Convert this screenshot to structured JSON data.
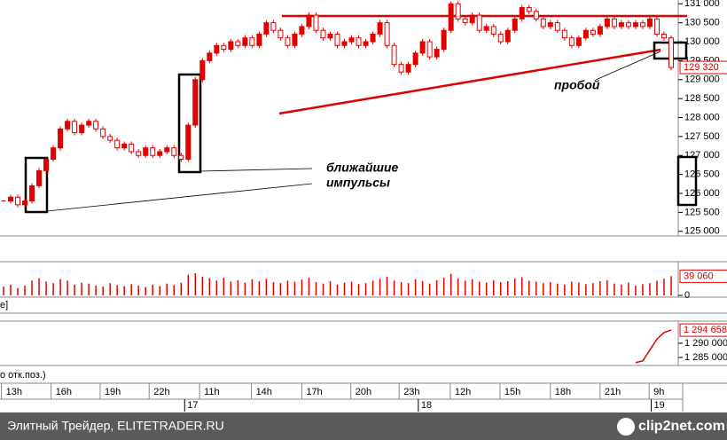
{
  "chart_data": [
    {
      "type": "candlestick",
      "color": "#e00000",
      "values": [
        125800,
        125900,
        125700,
        125800,
        126200,
        126600,
        126900,
        127200,
        127700,
        127900,
        127600,
        127800,
        127900,
        127700,
        127500,
        127400,
        127200,
        127300,
        127100,
        127000,
        127200,
        127000,
        127100,
        127200,
        127000,
        126900,
        127800,
        129000,
        129500,
        129700,
        129900,
        129800,
        130000,
        129900,
        130100,
        129900,
        130200,
        130500,
        130300,
        130100,
        129900,
        130200,
        130400,
        130700,
        130300,
        130100,
        130200,
        129900,
        130000,
        130100,
        129900,
        130000,
        130200,
        130500,
        129900,
        129400,
        129200,
        129400,
        129700,
        130000,
        129600,
        129800,
        130300,
        131000,
        130600,
        130500,
        130700,
        130300,
        130400,
        130200,
        130000,
        130300,
        130600,
        130900,
        130800,
        130600,
        130400,
        130500,
        130300,
        130100,
        129900,
        130100,
        130300,
        130200,
        130400,
        130600,
        130400,
        130500,
        130400,
        130500,
        130400,
        130600,
        130200,
        130100,
        129320
      ],
      "last": {
        "value": 129320,
        "label": "129 320"
      },
      "ylim": [
        124900,
        131100
      ],
      "yticks": [
        {
          "value": 131000,
          "label": "131 000"
        },
        {
          "value": 130500,
          "label": "130 500"
        },
        {
          "value": 130000,
          "label": "130 000"
        },
        {
          "value": 129500,
          "label": "129 500"
        },
        {
          "value": 129000,
          "label": "129 000"
        },
        {
          "value": 128500,
          "label": "128 500"
        },
        {
          "value": 128000,
          "label": "128 000"
        },
        {
          "value": 127500,
          "label": "127 500"
        },
        {
          "value": 127000,
          "label": "127 000"
        },
        {
          "value": 126500,
          "label": "126 500"
        },
        {
          "value": 126000,
          "label": "126 000"
        },
        {
          "value": 125500,
          "label": "125 500"
        },
        {
          "value": 125000,
          "label": "125 000"
        }
      ],
      "xlim": [
        -0.5,
        95
      ],
      "xticks": [
        {
          "value": -0.3,
          "label": "13h"
        },
        {
          "value": 6.7,
          "label": "16h"
        },
        {
          "value": 13.6,
          "label": "19h"
        },
        {
          "value": 20.5,
          "label": "22h"
        },
        {
          "value": 27.6,
          "label": "11h"
        },
        {
          "value": 34.9,
          "label": "14h"
        },
        {
          "value": 42,
          "label": "17h"
        },
        {
          "value": 48.9,
          "label": "20h"
        },
        {
          "value": 55.7,
          "label": "23h"
        },
        {
          "value": 62.9,
          "label": "12h"
        },
        {
          "value": 69.9,
          "label": "15h"
        },
        {
          "value": 77,
          "label": "18h"
        },
        {
          "value": 84,
          "label": "21h"
        },
        {
          "value": 90.9,
          "label": "9h"
        }
      ],
      "date_ticks": [
        {
          "value": 25.5,
          "label": "17"
        },
        {
          "value": 58.4,
          "label": "18"
        },
        {
          "value": 91.2,
          "label": "19"
        }
      ],
      "annotations": [
        "ближайшие",
        "импульсы",
        "пробой"
      ]
    },
    {
      "type": "bar",
      "color": "#e00000",
      "values": [
        18000,
        22000,
        15000,
        20000,
        30000,
        35000,
        28000,
        25000,
        33000,
        30000,
        22000,
        26000,
        24000,
        20000,
        18000,
        25000,
        21000,
        19000,
        23000,
        20000,
        17000,
        22000,
        19000,
        24000,
        21000,
        26000,
        42000,
        45000,
        38000,
        35000,
        30000,
        36000,
        28000,
        31000,
        26000,
        33000,
        29000,
        34000,
        27000,
        25000,
        30000,
        28000,
        32000,
        36000,
        27000,
        24000,
        29000,
        22000,
        26000,
        28000,
        23000,
        25000,
        30000,
        34000,
        38000,
        30000,
        27000,
        25000,
        33000,
        29000,
        24000,
        31000,
        36000,
        44000,
        35000,
        30000,
        33000,
        28000,
        26000,
        31000,
        27000,
        29000,
        34000,
        37000,
        30000,
        28000,
        25000,
        27000,
        24000,
        22000,
        28000,
        26000,
        23000,
        25000,
        29000,
        31000,
        24000,
        22000,
        26000,
        20000,
        23000,
        25000,
        30000,
        34000,
        39060
      ],
      "last": {
        "value": 39060,
        "label": "39 060"
      },
      "ylim": [
        0,
        65000
      ],
      "yticks": [
        0
      ]
    },
    {
      "type": "line",
      "color": "#e00000",
      "x": [
        89,
        90,
        91,
        92,
        93,
        94
      ],
      "values": [
        1283200,
        1283800,
        1287600,
        1291500,
        1293800,
        1294658
      ],
      "last": {
        "value": 1294658,
        "label": "1 294 658"
      },
      "ylim": [
        1282800,
        1297500
      ],
      "yticks": [
        {
          "value": 1290000,
          "label": "1 290 000"
        },
        {
          "value": 1285000,
          "label": "1 285 000"
        }
      ]
    }
  ],
  "panel_labels": [
    "e]",
    "о отк.поз.)"
  ],
  "footer": {
    "left": "Элитный Трейдер, ELITETRADER.RU",
    "right": "clip2net.com"
  }
}
